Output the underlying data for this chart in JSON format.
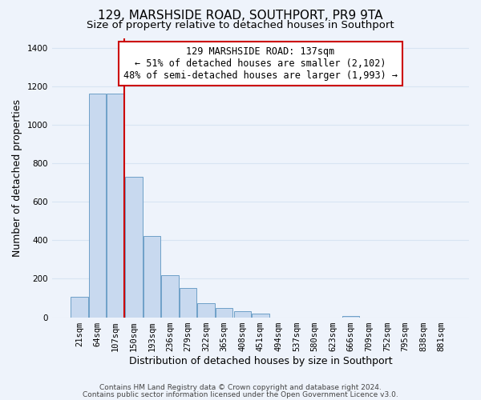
{
  "title": "129, MARSHSIDE ROAD, SOUTHPORT, PR9 9TA",
  "subtitle": "Size of property relative to detached houses in Southport",
  "xlabel": "Distribution of detached houses by size in Southport",
  "ylabel": "Number of detached properties",
  "bin_labels": [
    "21sqm",
    "64sqm",
    "107sqm",
    "150sqm",
    "193sqm",
    "236sqm",
    "279sqm",
    "322sqm",
    "365sqm",
    "408sqm",
    "451sqm",
    "494sqm",
    "537sqm",
    "580sqm",
    "623sqm",
    "666sqm",
    "709sqm",
    "752sqm",
    "795sqm",
    "838sqm",
    "881sqm"
  ],
  "bar_values": [
    108,
    1160,
    1160,
    730,
    420,
    220,
    150,
    75,
    50,
    30,
    20,
    0,
    0,
    0,
    0,
    5,
    0,
    0,
    0,
    0,
    0
  ],
  "bar_color": "#c8d9ef",
  "bar_edge_color": "#6ea0c8",
  "property_line_index": 2.5,
  "property_line_color": "#cc0000",
  "annotation_text": "129 MARSHSIDE ROAD: 137sqm\n← 51% of detached houses are smaller (2,102)\n48% of semi-detached houses are larger (1,993) →",
  "annotation_box_color": "#ffffff",
  "annotation_box_edge_color": "#cc0000",
  "ylim": [
    0,
    1450
  ],
  "yticks": [
    0,
    200,
    400,
    600,
    800,
    1000,
    1200,
    1400
  ],
  "footer_line1": "Contains HM Land Registry data © Crown copyright and database right 2024.",
  "footer_line2": "Contains public sector information licensed under the Open Government Licence v3.0.",
  "background_color": "#eef3fb",
  "plot_bg_color": "#eef3fb",
  "grid_color": "#d8e4f3",
  "title_fontsize": 11,
  "subtitle_fontsize": 9.5,
  "axis_label_fontsize": 9,
  "tick_fontsize": 7.5,
  "annotation_fontsize": 8.5,
  "footer_fontsize": 6.5
}
